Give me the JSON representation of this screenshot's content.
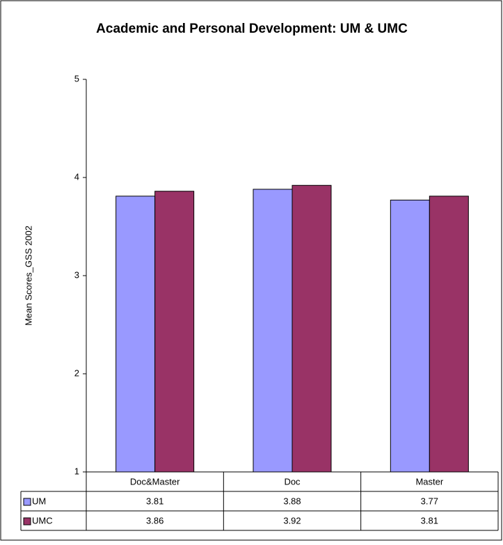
{
  "chart_data": {
    "type": "bar",
    "title": "Academic and Personal Development: UM & UMC",
    "y_label": "Mean Scores_GSS 2002",
    "categories": [
      "Doc&Master",
      "Doc",
      "Master"
    ],
    "series": [
      {
        "name": "UM",
        "color": "#9999ff",
        "values": [
          3.81,
          3.88,
          3.77
        ]
      },
      {
        "name": "UMC",
        "color": "#993366",
        "values": [
          3.86,
          3.92,
          3.81
        ]
      }
    ],
    "ylim": [
      1,
      5
    ],
    "yticks": [
      1,
      2,
      3,
      4,
      5
    ],
    "grid": false
  }
}
